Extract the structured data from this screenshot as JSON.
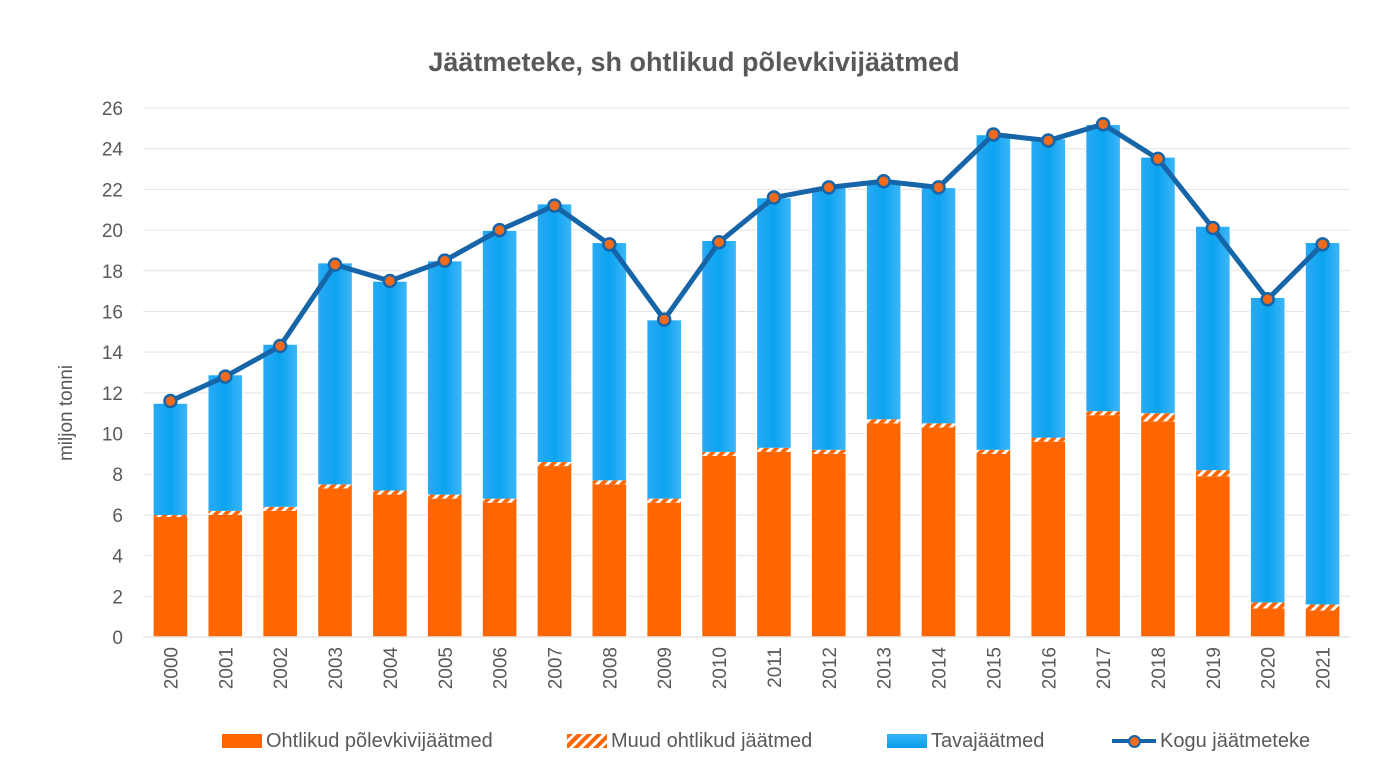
{
  "chart_data": {
    "type": "bar",
    "title": "Jäätmeteke, sh ohtlikud põlevkivijäätmed",
    "ylabel": "miljon tonni",
    "xlabel": "",
    "ylim": [
      0,
      26
    ],
    "yticks": [
      0,
      2,
      4,
      6,
      8,
      10,
      12,
      14,
      16,
      18,
      20,
      22,
      24,
      26
    ],
    "grid": true,
    "legend_position": "bottom",
    "categories": [
      "2000",
      "2001",
      "2002",
      "2003",
      "2004",
      "2005",
      "2006",
      "2007",
      "2008",
      "2009",
      "2010",
      "2011",
      "2012",
      "2013",
      "2014",
      "2015",
      "2016",
      "2017",
      "2018",
      "2019",
      "2020",
      "2021"
    ],
    "series": [
      {
        "name": "Ohtlikud põlevkivijäätmed",
        "kind": "bar",
        "color": "#ff6600",
        "values": [
          5.9,
          6.0,
          6.2,
          7.3,
          7.0,
          6.8,
          6.6,
          8.4,
          7.5,
          6.6,
          8.9,
          9.1,
          9.0,
          10.5,
          10.3,
          9.0,
          9.6,
          10.9,
          10.6,
          7.9,
          1.4,
          1.3
        ]
      },
      {
        "name": "Muud ohtlikud jäätmed",
        "kind": "bar",
        "color": "#ff6600",
        "pattern": "hatched",
        "values": [
          0.1,
          0.2,
          0.2,
          0.2,
          0.2,
          0.2,
          0.2,
          0.2,
          0.2,
          0.2,
          0.2,
          0.2,
          0.2,
          0.2,
          0.2,
          0.2,
          0.2,
          0.2,
          0.4,
          0.3,
          0.3,
          0.3
        ]
      },
      {
        "name": "Tavajäätmed",
        "kind": "bar",
        "color": "#1aa7f2",
        "values": [
          5.5,
          6.7,
          8.0,
          10.9,
          10.3,
          11.5,
          13.2,
          12.7,
          11.7,
          8.8,
          10.4,
          12.3,
          12.9,
          11.7,
          11.6,
          15.5,
          14.7,
          14.1,
          12.6,
          12.0,
          15.0,
          17.8
        ]
      },
      {
        "name": "Kogu jäätmeteke",
        "kind": "line",
        "color": "#1565a8",
        "marker_color": "#f26b1d",
        "values": [
          11.6,
          12.8,
          14.3,
          18.3,
          17.5,
          18.5,
          20.0,
          21.2,
          19.3,
          15.6,
          19.4,
          21.6,
          22.1,
          22.4,
          22.1,
          24.7,
          24.4,
          25.2,
          23.5,
          20.1,
          16.6,
          19.3
        ]
      }
    ]
  }
}
